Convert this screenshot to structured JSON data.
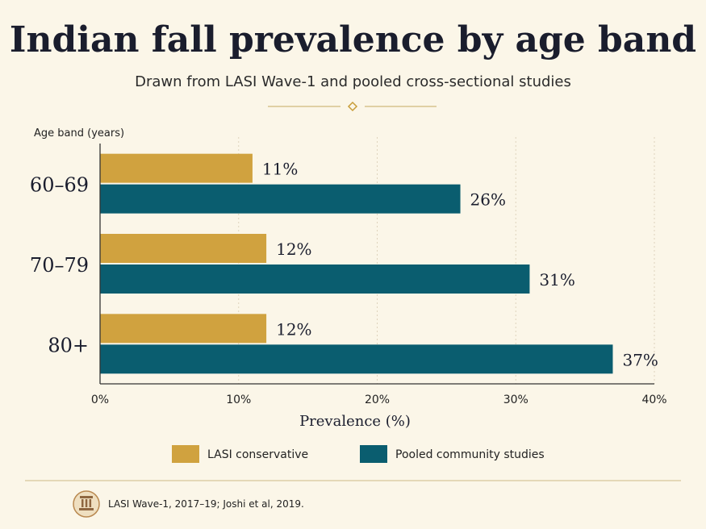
{
  "header": {
    "title": "Indian fall prevalence by age band",
    "subtitle": "Drawn from LASI Wave-1 and pooled cross-sectional studies"
  },
  "footer": {
    "source": "LASI Wave-1, 2017–19; Joshi et al, 2019.",
    "icon": "classical-pillar-icon"
  },
  "colors": {
    "background": "#fbf6e8",
    "gold": "#d0a23f",
    "teal": "#0a5d6f",
    "rule": "#cdbb86",
    "text": "#1a1d2d"
  },
  "chart_data": {
    "type": "bar",
    "orientation": "horizontal",
    "categories": [
      "60–69",
      "70–79",
      "80+"
    ],
    "series": [
      {
        "name": "LASI conservative",
        "values": [
          11,
          12,
          12
        ],
        "labels": [
          "11%",
          "12%",
          "12%"
        ],
        "color": "#d0a23f"
      },
      {
        "name": "Pooled community studies",
        "values": [
          26,
          31,
          37
        ],
        "labels": [
          "26%",
          "31%",
          "37%"
        ],
        "color": "#0a5d6f"
      }
    ],
    "xlabel": "Prevalence (%)",
    "ylabel": "Age band (years)",
    "xlim": [
      0,
      40
    ],
    "xticks": [
      0,
      10,
      20,
      30,
      40
    ],
    "xtick_labels": [
      "0%",
      "10%",
      "20%",
      "30%",
      "40%"
    ],
    "grid": "vertical dotted",
    "legend": "bottom"
  }
}
